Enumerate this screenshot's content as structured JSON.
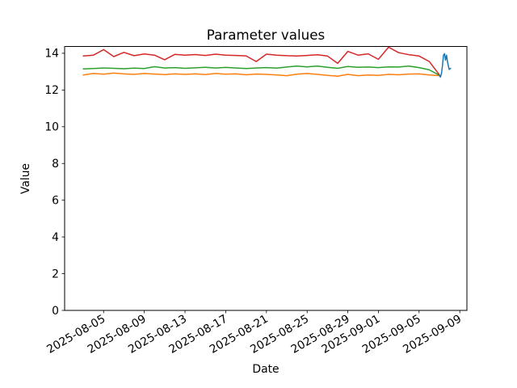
{
  "chart_data": {
    "type": "line",
    "title": "Parameter values",
    "xlabel": "Date",
    "ylabel": "Value",
    "grid": false,
    "legend": "none",
    "x_epoch": "2025-08-01",
    "xlim_days": [
      0.17,
      39.7
    ],
    "ylim": [
      0,
      14.37
    ],
    "yticks": [
      0,
      2,
      4,
      6,
      8,
      10,
      12,
      14
    ],
    "xtick_days": [
      4,
      8,
      12,
      16,
      20,
      24,
      28,
      31,
      35,
      39
    ],
    "xtick_labels": [
      "2025-08-05",
      "2025-08-09",
      "2025-08-13",
      "2025-08-17",
      "2025-08-21",
      "2025-08-25",
      "2025-08-29",
      "2025-09-01",
      "2025-09-05",
      "2025-09-09"
    ],
    "series": [
      {
        "name": "orange-series",
        "color": "#ff7f0e",
        "x_days": [
          2,
          3,
          4,
          5,
          6,
          7,
          8,
          9,
          10,
          11,
          12,
          13,
          14,
          15,
          16,
          17,
          18,
          19,
          20,
          21,
          22,
          23,
          24,
          25,
          26,
          27,
          28,
          29,
          30,
          31,
          32,
          33,
          34,
          35,
          36,
          37
        ],
        "values": [
          12.82,
          12.9,
          12.86,
          12.92,
          12.88,
          12.85,
          12.9,
          12.87,
          12.84,
          12.88,
          12.85,
          12.88,
          12.84,
          12.9,
          12.86,
          12.88,
          12.83,
          12.87,
          12.85,
          12.82,
          12.78,
          12.86,
          12.9,
          12.85,
          12.8,
          12.75,
          12.85,
          12.78,
          12.82,
          12.8,
          12.85,
          12.83,
          12.87,
          12.88,
          12.82,
          12.78
        ]
      },
      {
        "name": "green-series",
        "color": "#2ca02c",
        "x_days": [
          2,
          3,
          4,
          5,
          6,
          7,
          8,
          9,
          10,
          11,
          12,
          13,
          14,
          15,
          16,
          17,
          18,
          19,
          20,
          21,
          22,
          23,
          24,
          25,
          26,
          27,
          28,
          29,
          30,
          31,
          32,
          33,
          34,
          35,
          36,
          37
        ],
        "values": [
          13.15,
          13.17,
          13.2,
          13.18,
          13.16,
          13.19,
          13.17,
          13.27,
          13.2,
          13.22,
          13.18,
          13.21,
          13.24,
          13.2,
          13.23,
          13.2,
          13.17,
          13.2,
          13.22,
          13.19,
          13.25,
          13.3,
          13.26,
          13.3,
          13.24,
          13.18,
          13.28,
          13.24,
          13.25,
          13.22,
          13.26,
          13.25,
          13.3,
          13.22,
          13.1,
          12.8
        ]
      },
      {
        "name": "red-series",
        "color": "#d62728",
        "x_days": [
          2,
          3,
          4,
          5,
          6,
          7,
          8,
          9,
          10,
          11,
          12,
          13,
          14,
          15,
          16,
          17,
          18,
          19,
          20,
          21,
          22,
          23,
          24,
          25,
          26,
          27,
          28,
          29,
          30,
          31,
          32,
          33,
          34,
          35,
          36,
          37
        ],
        "values": [
          13.85,
          13.9,
          14.2,
          13.82,
          14.05,
          13.87,
          13.96,
          13.9,
          13.65,
          13.94,
          13.9,
          13.93,
          13.88,
          13.95,
          13.9,
          13.88,
          13.86,
          13.55,
          13.95,
          13.9,
          13.87,
          13.85,
          13.88,
          13.92,
          13.85,
          13.45,
          14.1,
          13.9,
          13.97,
          13.67,
          14.33,
          14.03,
          13.92,
          13.85,
          13.55,
          12.82
        ]
      },
      {
        "name": "blue-series",
        "color": "#1f77b4",
        "x_days": [
          37.0,
          37.1,
          37.2,
          37.3,
          37.4,
          37.5,
          37.6,
          37.7,
          37.8,
          37.95,
          38.1
        ],
        "values": [
          12.8,
          12.7,
          12.9,
          13.35,
          13.9,
          13.98,
          13.62,
          13.9,
          13.5,
          13.12,
          13.18
        ]
      }
    ]
  }
}
